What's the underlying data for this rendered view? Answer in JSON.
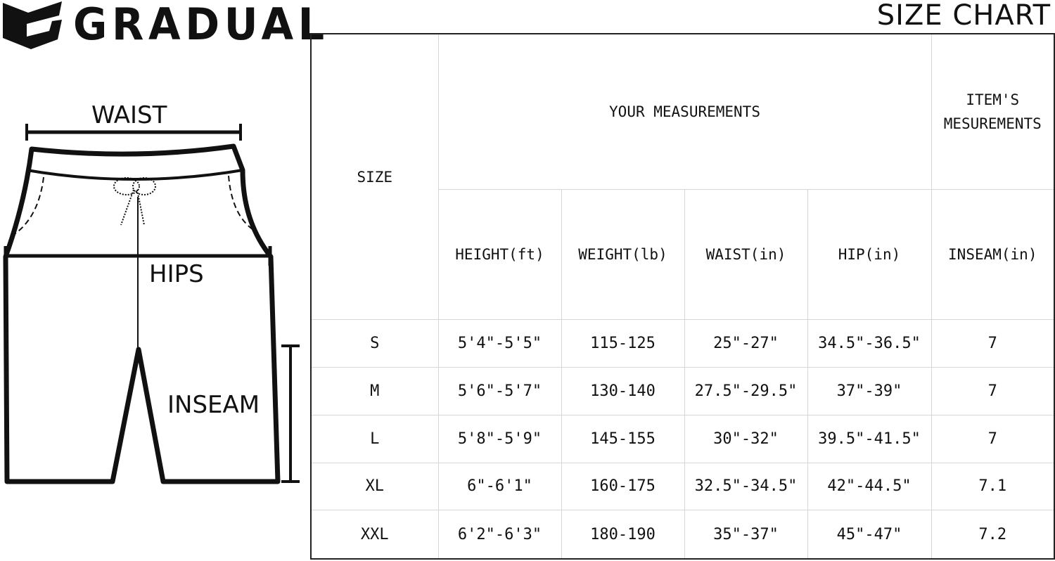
{
  "brand": "GRADUAL",
  "title": "SIZE CHART",
  "diagram": {
    "waist": "WAIST",
    "hips": "HIPS",
    "inseam": "INSEAM"
  },
  "table": {
    "size_header": "SIZE",
    "group_your": "YOUR MEASUREMENTS",
    "group_item": "ITEM'S MESUREMENTS",
    "columns": [
      "HEIGHT(ft)",
      "WEIGHT(lb)",
      "WAIST(in)",
      "HIP(in)",
      "INSEAM(in)"
    ],
    "rows": [
      [
        "S",
        "5'4\"-5'5\"",
        "115-125",
        "25\"-27\"",
        "34.5\"-36.5\"",
        "7"
      ],
      [
        "M",
        "5'6\"-5'7\"",
        "130-140",
        "27.5\"-29.5\"",
        "37\"-39\"",
        "7"
      ],
      [
        "L",
        "5'8\"-5'9\"",
        "145-155",
        "30\"-32\"",
        "39.5\"-41.5\"",
        "7"
      ],
      [
        "XL",
        "6\"-6'1\"",
        "160-175",
        "32.5\"-34.5\"",
        "42\"-44.5\"",
        "7.1"
      ],
      [
        "XXL",
        "6'2\"-6'3\"",
        "180-190",
        "35\"-37\"",
        "45\"-47\"",
        "7.2"
      ]
    ]
  }
}
